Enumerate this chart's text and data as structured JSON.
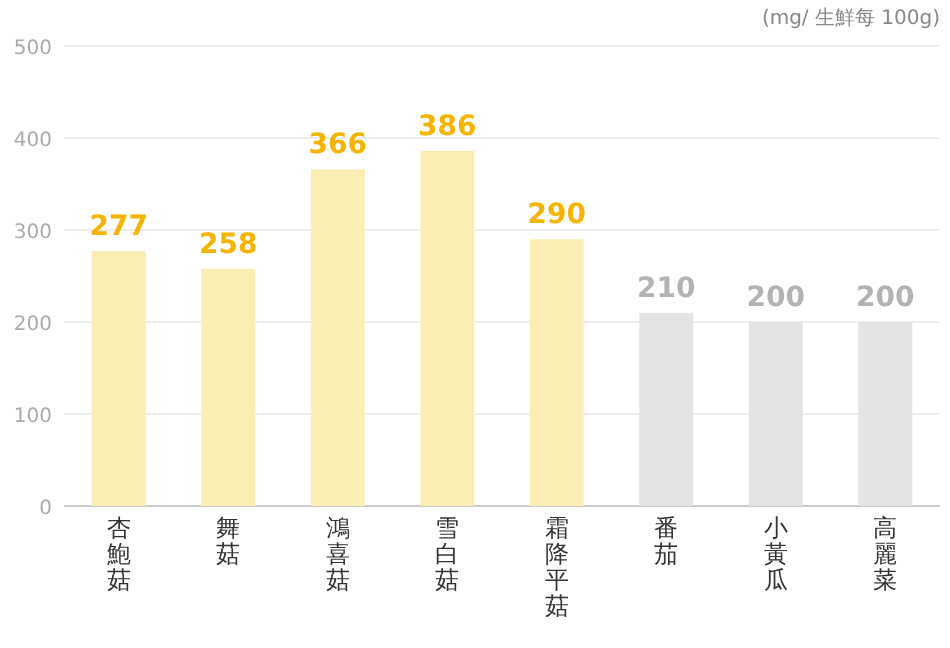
{
  "chart_data": {
    "type": "bar",
    "categories": [
      "杏鮑菇",
      "舞菇",
      "鴻喜菇",
      "雪白菇",
      "霜降平菇",
      "番茄",
      "小黃瓜",
      "高麗菜"
    ],
    "values": [
      277,
      258,
      366,
      386,
      290,
      210,
      200,
      200
    ],
    "colors": [
      "#faeeb4",
      "#faeeb4",
      "#faeeb4",
      "#faeeb4",
      "#faeeb4",
      "#e4e4e4",
      "#e4e4e4",
      "#e4e4e4"
    ],
    "ylim": [
      0,
      500
    ],
    "yticks": [
      0,
      100,
      200,
      300,
      400,
      500
    ],
    "grid": "y",
    "data_labels": true,
    "annotations": [
      "(mg/ 生鮮每 100g)"
    ]
  }
}
